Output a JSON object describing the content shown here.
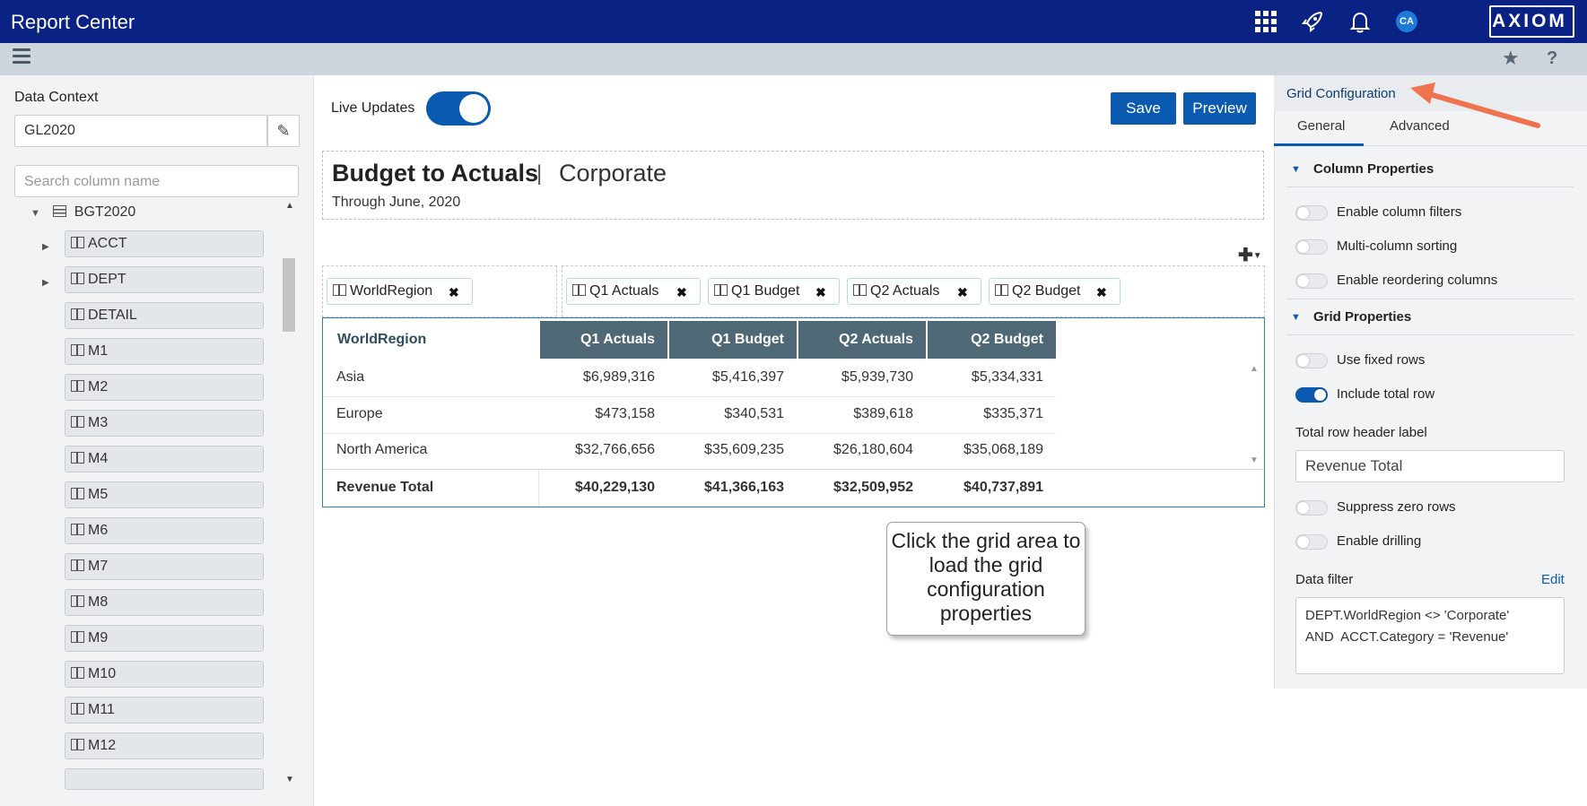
{
  "app": {
    "title": "Report Center",
    "brand": "AXIOM",
    "avatar_initials": "CA",
    "icons": [
      "apps-grid-icon",
      "rocket-icon",
      "bell-icon",
      "star-icon",
      "help-icon",
      "menu-icon"
    ]
  },
  "left": {
    "data_context_label": "Data Context",
    "data_context_value": "GL2020",
    "search_placeholder": "Search column name",
    "root": "BGT2020",
    "items": [
      "ACCT",
      "DEPT",
      "DETAIL",
      "M1",
      "M2",
      "M3",
      "M4",
      "M5",
      "M6",
      "M7",
      "M8",
      "M9",
      "M10",
      "M11",
      "M12"
    ]
  },
  "center": {
    "live_updates_label": "Live Updates",
    "live_updates_on": true,
    "save_label": "Save",
    "preview_label": "Preview",
    "report_title": "Budget to Actuals",
    "report_separator": "|",
    "report_subtitle": "Corporate",
    "report_date": "Through June, 2020",
    "row_pills": [
      "WorldRegion"
    ],
    "column_pills": [
      "Q1 Actuals",
      "Q1 Budget",
      "Q2 Actuals",
      "Q2 Budget"
    ],
    "grid": {
      "headers": [
        "WorldRegion",
        "Q1 Actuals",
        "Q1 Budget",
        "Q2 Actuals",
        "Q2 Budget"
      ],
      "rows": [
        [
          "Asia",
          "$6,989,316",
          "$5,416,397",
          "$5,939,730",
          "$5,334,331"
        ],
        [
          "Europe",
          "$473,158",
          "$340,531",
          "$389,618",
          "$335,371"
        ],
        [
          "North America",
          "$32,766,656",
          "$35,609,235",
          "$26,180,604",
          "$35,068,189"
        ]
      ],
      "total": [
        "Revenue Total",
        "$40,229,130",
        "$41,366,163",
        "$32,509,952",
        "$40,737,891"
      ]
    },
    "callout": "Click the grid area to load the grid configuration properties"
  },
  "right": {
    "title": "Grid Configuration",
    "tabs": [
      "General",
      "Advanced"
    ],
    "column_properties_title": "Column Properties",
    "column_properties": [
      {
        "label": "Enable column filters",
        "on": false
      },
      {
        "label": "Multi-column sorting",
        "on": false
      },
      {
        "label": "Enable reordering columns",
        "on": false
      }
    ],
    "grid_properties_title": "Grid Properties",
    "use_fixed_rows": "Use fixed rows",
    "include_total_row": "Include total row",
    "total_row_header_label": "Total row header label",
    "total_row_header_value": "Revenue Total",
    "suppress_zero_rows": "Suppress zero rows",
    "enable_drilling": "Enable drilling",
    "data_filter_label": "Data filter",
    "data_filter_edit": "Edit",
    "data_filter_value": "DEPT.WorldRegion <> 'Corporate'\nAND  ACCT.Category = 'Revenue'"
  },
  "colors": {
    "topbar": "#0a2284",
    "accent": "#0a5bb0",
    "grid_header": "#4e6875",
    "arrow": "#f0734f"
  }
}
